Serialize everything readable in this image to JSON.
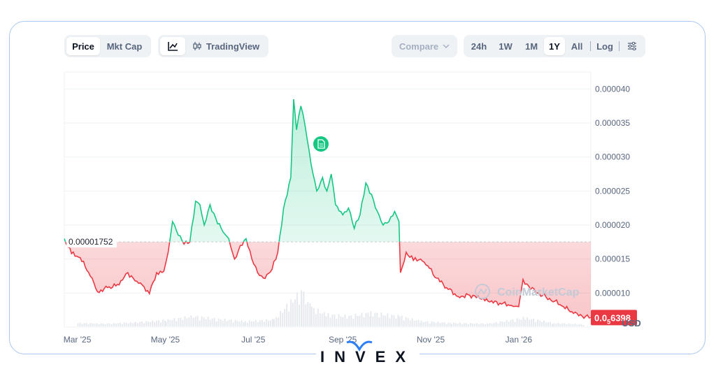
{
  "toolbar": {
    "metric_tabs": [
      "Price",
      "Mkt Cap"
    ],
    "active_metric": "Price",
    "tradingview_label": "TradingView",
    "compare_label": "Compare",
    "ranges": [
      "24h",
      "1W",
      "1M",
      "1Y",
      "All"
    ],
    "active_range": "1Y",
    "log_label": "Log"
  },
  "watermark": "CoinMarketCap",
  "brand": "INVEX",
  "currency": "USD",
  "colors": {
    "up": "#16c784",
    "down": "#ea3943",
    "axis": "#58667e"
  },
  "chart_data": {
    "type": "area",
    "title": "",
    "xlabel": "",
    "ylabel": "",
    "x_ticks": [
      "Mar '25",
      "May '25",
      "Jul '25",
      "Sep '25",
      "Nov '25",
      "Jan '26"
    ],
    "y_ticks": [
      "0.000010",
      "0.000015",
      "0.000020",
      "0.000025",
      "0.000030",
      "0.000035",
      "0.000040"
    ],
    "ylim": [
      5e-06,
      4.25e-05
    ],
    "xlim": [
      "2025-02-20",
      "2026-02-20"
    ],
    "reference_value": 1.752e-05,
    "reference_label": "0.00001752",
    "current_label_prefix": "0.0",
    "current_label_sub": "5",
    "current_label_suffix": "6398",
    "current_value": 6.398e-06,
    "grid": true,
    "series": [
      {
        "values": [
          [
            "2025-02-20",
            1.8e-05
          ],
          [
            "2025-02-25",
            1.58e-05
          ],
          [
            "2025-03-03",
            1.52e-05
          ],
          [
            "2025-03-10",
            1.25e-05
          ],
          [
            "2025-03-15",
            1.02e-05
          ],
          [
            "2025-03-22",
            1.08e-05
          ],
          [
            "2025-03-30",
            1.12e-05
          ],
          [
            "2025-04-05",
            1.3e-05
          ],
          [
            "2025-04-10",
            1.18e-05
          ],
          [
            "2025-04-15",
            1.12e-05
          ],
          [
            "2025-04-20",
            9.9e-06
          ],
          [
            "2025-04-25",
            1.3e-05
          ],
          [
            "2025-04-30",
            1.32e-05
          ],
          [
            "2025-05-03",
            1.6e-05
          ],
          [
            "2025-05-06",
            2.05e-05
          ],
          [
            "2025-05-10",
            1.85e-05
          ],
          [
            "2025-05-14",
            1.72e-05
          ],
          [
            "2025-05-18",
            1.75e-05
          ],
          [
            "2025-05-22",
            2.35e-05
          ],
          [
            "2025-05-25",
            2.3e-05
          ],
          [
            "2025-05-28",
            2e-05
          ],
          [
            "2025-06-01",
            2.3e-05
          ],
          [
            "2025-06-05",
            2.1e-05
          ],
          [
            "2025-06-10",
            1.9e-05
          ],
          [
            "2025-06-14",
            1.8e-05
          ],
          [
            "2025-06-18",
            1.5e-05
          ],
          [
            "2025-06-22",
            1.7e-05
          ],
          [
            "2025-06-26",
            1.8e-05
          ],
          [
            "2025-06-30",
            1.5e-05
          ],
          [
            "2025-07-04",
            1.3e-05
          ],
          [
            "2025-07-08",
            1.22e-05
          ],
          [
            "2025-07-14",
            1.35e-05
          ],
          [
            "2025-07-18",
            1.6e-05
          ],
          [
            "2025-07-22",
            2.25e-05
          ],
          [
            "2025-07-27",
            2.7e-05
          ],
          [
            "2025-07-29",
            3.85e-05
          ],
          [
            "2025-07-31",
            3.4e-05
          ],
          [
            "2025-08-03",
            3.75e-05
          ],
          [
            "2025-08-06",
            3.45e-05
          ],
          [
            "2025-08-10",
            2.9e-05
          ],
          [
            "2025-08-14",
            2.5e-05
          ],
          [
            "2025-08-18",
            2.7e-05
          ],
          [
            "2025-08-21",
            2.5e-05
          ],
          [
            "2025-08-24",
            2.75e-05
          ],
          [
            "2025-08-27",
            2.3e-05
          ],
          [
            "2025-09-01",
            2.15e-05
          ],
          [
            "2025-09-05",
            2.25e-05
          ],
          [
            "2025-09-09",
            1.95e-05
          ],
          [
            "2025-09-13",
            2.15e-05
          ],
          [
            "2025-09-17",
            2.62e-05
          ],
          [
            "2025-09-21",
            2.45e-05
          ],
          [
            "2025-09-25",
            2.2e-05
          ],
          [
            "2025-09-29",
            2e-05
          ],
          [
            "2025-10-03",
            2.05e-05
          ],
          [
            "2025-10-07",
            2.2e-05
          ],
          [
            "2025-10-10",
            2.05e-05
          ],
          [
            "2025-10-11",
            1.3e-05
          ],
          [
            "2025-10-15",
            1.6e-05
          ],
          [
            "2025-10-20",
            1.48e-05
          ],
          [
            "2025-10-25",
            1.5e-05
          ],
          [
            "2025-10-30",
            1.4e-05
          ],
          [
            "2025-11-05",
            1.22e-05
          ],
          [
            "2025-11-12",
            1.08e-05
          ],
          [
            "2025-11-20",
            9.5e-06
          ],
          [
            "2025-11-28",
            9.7e-06
          ],
          [
            "2025-12-05",
            9.2e-06
          ],
          [
            "2025-12-12",
            8.7e-06
          ],
          [
            "2025-12-19",
            8.5e-06
          ],
          [
            "2025-12-27",
            8.2e-06
          ],
          [
            "2026-01-01",
            8e-06
          ],
          [
            "2026-01-04",
            1.2e-05
          ],
          [
            "2026-01-08",
            1.1e-05
          ],
          [
            "2026-01-14",
            1e-05
          ],
          [
            "2026-01-20",
            9.4e-06
          ],
          [
            "2026-01-26",
            8.8e-06
          ],
          [
            "2026-02-01",
            8e-06
          ],
          [
            "2026-02-08",
            7e-06
          ],
          [
            "2026-02-14",
            6.6e-06
          ],
          [
            "2026-02-20",
            6.4e-06
          ]
        ]
      }
    ],
    "volume": [
      [
        "2025-03-01",
        0.1
      ],
      [
        "2025-03-20",
        0.08
      ],
      [
        "2025-04-10",
        0.12
      ],
      [
        "2025-05-01",
        0.18
      ],
      [
        "2025-05-20",
        0.3
      ],
      [
        "2025-06-05",
        0.22
      ],
      [
        "2025-06-25",
        0.15
      ],
      [
        "2025-07-15",
        0.2
      ],
      [
        "2025-07-28",
        0.8
      ],
      [
        "2025-08-03",
        1.0
      ],
      [
        "2025-08-10",
        0.55
      ],
      [
        "2025-08-20",
        0.35
      ],
      [
        "2025-09-05",
        0.3
      ],
      [
        "2025-09-20",
        0.4
      ],
      [
        "2025-10-10",
        0.3
      ],
      [
        "2025-10-25",
        0.15
      ],
      [
        "2025-11-15",
        0.1
      ],
      [
        "2025-12-10",
        0.08
      ],
      [
        "2026-01-05",
        0.25
      ],
      [
        "2026-01-25",
        0.1
      ],
      [
        "2026-02-15",
        0.06
      ]
    ]
  }
}
